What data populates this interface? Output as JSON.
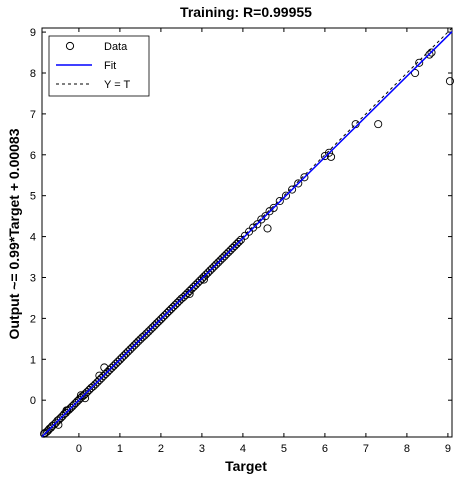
{
  "chart_data": {
    "type": "scatter",
    "title": "Training: R=0.99955",
    "xlabel": "Target",
    "ylabel": "Output ~= 0.99*Target + 0.00083",
    "xlim": [
      -0.9,
      9.1
    ],
    "ylim": [
      -0.9,
      9.1
    ],
    "xticks": [
      "0",
      "1",
      "2",
      "3",
      "4",
      "5",
      "6",
      "7",
      "8",
      "9"
    ],
    "yticks": [
      "0",
      "1",
      "2",
      "3",
      "4",
      "5",
      "6",
      "7",
      "8",
      "9"
    ],
    "grid": false,
    "legend_position": "top-left",
    "legend": [
      {
        "label": "Data",
        "marker": "circle",
        "color": "#000000"
      },
      {
        "label": "Fit",
        "line": "solid",
        "color": "#0000ff"
      },
      {
        "label": "Y = T",
        "line": "dashed",
        "color": "#000000"
      }
    ],
    "fit": {
      "slope": 0.99,
      "intercept": 0.00083
    },
    "series": [
      {
        "name": "Data",
        "points": [
          [
            -0.85,
            -0.82
          ],
          [
            -0.82,
            -0.8
          ],
          [
            -0.78,
            -0.77
          ],
          [
            -0.75,
            -0.74
          ],
          [
            -0.72,
            -0.7
          ],
          [
            -0.68,
            -0.67
          ],
          [
            -0.65,
            -0.63
          ],
          [
            -0.6,
            -0.59
          ],
          [
            -0.56,
            -0.55
          ],
          [
            -0.52,
            -0.5
          ],
          [
            -0.48,
            -0.47
          ],
          [
            -0.44,
            -0.43
          ],
          [
            -0.4,
            -0.39
          ],
          [
            -0.36,
            -0.34
          ],
          [
            -0.32,
            -0.31
          ],
          [
            -0.28,
            -0.26
          ],
          [
            -0.24,
            -0.23
          ],
          [
            -0.2,
            -0.19
          ],
          [
            -0.16,
            -0.15
          ],
          [
            -0.12,
            -0.11
          ],
          [
            -0.08,
            -0.07
          ],
          [
            -0.04,
            -0.03
          ],
          [
            0.0,
            0.01
          ],
          [
            0.04,
            0.05
          ],
          [
            0.08,
            0.09
          ],
          [
            0.12,
            0.12
          ],
          [
            0.16,
            0.16
          ],
          [
            0.2,
            0.2
          ],
          [
            0.25,
            0.25
          ],
          [
            0.3,
            0.3
          ],
          [
            0.35,
            0.34
          ],
          [
            0.4,
            0.39
          ],
          [
            0.45,
            0.44
          ],
          [
            0.5,
            0.49
          ],
          [
            0.55,
            0.54
          ],
          [
            0.6,
            0.59
          ],
          [
            0.65,
            0.64
          ],
          [
            0.7,
            0.69
          ],
          [
            0.75,
            0.74
          ],
          [
            0.8,
            0.79
          ],
          [
            0.85,
            0.84
          ],
          [
            0.9,
            0.89
          ],
          [
            0.95,
            0.94
          ],
          [
            1.0,
            0.99
          ],
          [
            1.05,
            1.04
          ],
          [
            1.1,
            1.09
          ],
          [
            1.15,
            1.14
          ],
          [
            1.2,
            1.19
          ],
          [
            1.25,
            1.24
          ],
          [
            1.3,
            1.29
          ],
          [
            1.35,
            1.34
          ],
          [
            1.4,
            1.39
          ],
          [
            1.45,
            1.44
          ],
          [
            1.5,
            1.49
          ],
          [
            1.55,
            1.54
          ],
          [
            1.6,
            1.58
          ],
          [
            1.65,
            1.63
          ],
          [
            1.7,
            1.68
          ],
          [
            1.75,
            1.73
          ],
          [
            1.8,
            1.78
          ],
          [
            1.85,
            1.83
          ],
          [
            1.9,
            1.88
          ],
          [
            1.95,
            1.93
          ],
          [
            2.0,
            1.98
          ],
          [
            2.05,
            2.03
          ],
          [
            2.1,
            2.08
          ],
          [
            2.15,
            2.13
          ],
          [
            2.2,
            2.18
          ],
          [
            2.25,
            2.23
          ],
          [
            2.3,
            2.28
          ],
          [
            2.35,
            2.33
          ],
          [
            2.4,
            2.38
          ],
          [
            2.45,
            2.43
          ],
          [
            2.5,
            2.48
          ],
          [
            2.55,
            2.52
          ],
          [
            2.6,
            2.57
          ],
          [
            2.65,
            2.62
          ],
          [
            2.7,
            2.67
          ],
          [
            2.75,
            2.72
          ],
          [
            2.8,
            2.77
          ],
          [
            2.85,
            2.82
          ],
          [
            2.9,
            2.87
          ],
          [
            2.95,
            2.92
          ],
          [
            3.0,
            2.97
          ],
          [
            3.05,
            3.02
          ],
          [
            3.1,
            3.07
          ],
          [
            3.15,
            3.12
          ],
          [
            3.2,
            3.17
          ],
          [
            3.25,
            3.22
          ],
          [
            3.3,
            3.27
          ],
          [
            3.35,
            3.32
          ],
          [
            3.4,
            3.37
          ],
          [
            3.45,
            3.42
          ],
          [
            3.5,
            3.47
          ],
          [
            3.55,
            3.52
          ],
          [
            3.6,
            3.57
          ],
          [
            3.65,
            3.62
          ],
          [
            3.7,
            3.67
          ],
          [
            3.75,
            3.72
          ],
          [
            3.8,
            3.77
          ],
          [
            3.85,
            3.82
          ],
          [
            3.9,
            3.87
          ],
          [
            3.95,
            3.92
          ],
          [
            4.05,
            4.02
          ],
          [
            4.15,
            4.12
          ],
          [
            4.25,
            4.22
          ],
          [
            4.35,
            4.3
          ],
          [
            4.45,
            4.42
          ],
          [
            4.55,
            4.5
          ],
          [
            4.65,
            4.62
          ],
          [
            4.75,
            4.7
          ],
          [
            4.9,
            4.87
          ],
          [
            5.05,
            5.0
          ],
          [
            5.2,
            5.15
          ],
          [
            5.35,
            5.3
          ],
          [
            5.5,
            5.45
          ],
          [
            6.0,
            5.97
          ],
          [
            6.1,
            6.05
          ],
          [
            6.15,
            5.95
          ],
          [
            6.75,
            6.75
          ],
          [
            8.2,
            8.0
          ],
          [
            8.3,
            8.25
          ],
          [
            8.55,
            8.45
          ],
          [
            8.6,
            8.5
          ],
          [
            9.05,
            7.8
          ],
          [
            -0.3,
            -0.25
          ],
          [
            0.05,
            0.12
          ],
          [
            0.5,
            0.6
          ],
          [
            0.62,
            0.8
          ],
          [
            2.7,
            2.6
          ],
          [
            3.05,
            2.95
          ],
          [
            4.6,
            4.2
          ],
          [
            7.3,
            6.75
          ],
          [
            0.15,
            0.05
          ],
          [
            -0.5,
            -0.6
          ]
        ]
      }
    ]
  }
}
